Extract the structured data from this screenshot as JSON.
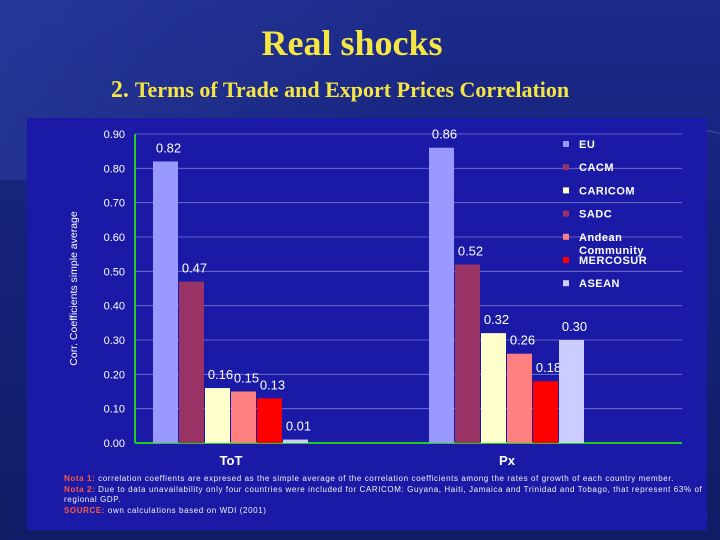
{
  "slide": {
    "title": "Real shocks",
    "subtitle_number": "2.",
    "subtitle_text": "Terms of Trade and Export Prices Correlation"
  },
  "notes": [
    {
      "label": "Nota 1:",
      "text": "correlation coeffients are expresed as the simple average of the correlation coefficients among the rates of growth of each country member."
    },
    {
      "label": "Nota 2:",
      "text": "Due to data unavailability only four countries were included for CARICOM: Guyana, Haiti, Jamaica and Trinidad and Tobago, that represent 63% of regional GDP."
    },
    {
      "label": "SOURCE:",
      "text": "own calculations based on WDI (2001)"
    }
  ],
  "chart_data": {
    "type": "bar",
    "title": "",
    "xlabel": "",
    "ylabel": "Corr. Coefficients simple average",
    "ylim": [
      0,
      0.9
    ],
    "yticks": [
      "0.00",
      "0.10",
      "0.20",
      "0.30",
      "0.40",
      "0.50",
      "0.60",
      "0.70",
      "0.80",
      "0.90"
    ],
    "grid": true,
    "legend_position": "right",
    "categories": [
      "ToT",
      "Px"
    ],
    "series": [
      {
        "name": "EU",
        "color": "#9999ff",
        "values": [
          0.82,
          0.86
        ],
        "labels": [
          "0.82",
          "0.86"
        ]
      },
      {
        "name": "CACM",
        "color": "#993366",
        "values": [
          0.47,
          0.52
        ],
        "labels": [
          "0.47",
          "0.52"
        ]
      },
      {
        "name": "CARICOM",
        "color": "#ffffcc",
        "values": [
          0.16,
          0.32
        ],
        "labels": [
          "0.16",
          "0.32"
        ]
      },
      {
        "name": "SADC",
        "color": "#993366",
        "values": [
          null,
          null
        ],
        "labels": [
          "",
          ""
        ]
      },
      {
        "name": "Andean Community",
        "color": "#ff8080",
        "values": [
          0.15,
          0.26
        ],
        "labels": [
          "0.15",
          "0.26"
        ]
      },
      {
        "name": "MERCOSUR",
        "color": "#ff0000",
        "values": [
          0.13,
          0.18
        ],
        "labels": [
          "0.13",
          "0.18"
        ]
      },
      {
        "name": "ASEAN",
        "color": "#ccccff",
        "values": [
          0.01,
          0.3
        ],
        "labels": [
          "0.01",
          "0.30"
        ]
      }
    ],
    "legend_order": [
      "EU",
      "CACM",
      "CARICOM",
      "SADC",
      "Andean Community",
      "MERCOSUR",
      "ASEAN"
    ],
    "colors": {
      "panel": "#1a1aa6",
      "axis": "#22cc22",
      "grid": "#7a7acc",
      "text": "#ffffff",
      "title": "#f5e642"
    }
  }
}
